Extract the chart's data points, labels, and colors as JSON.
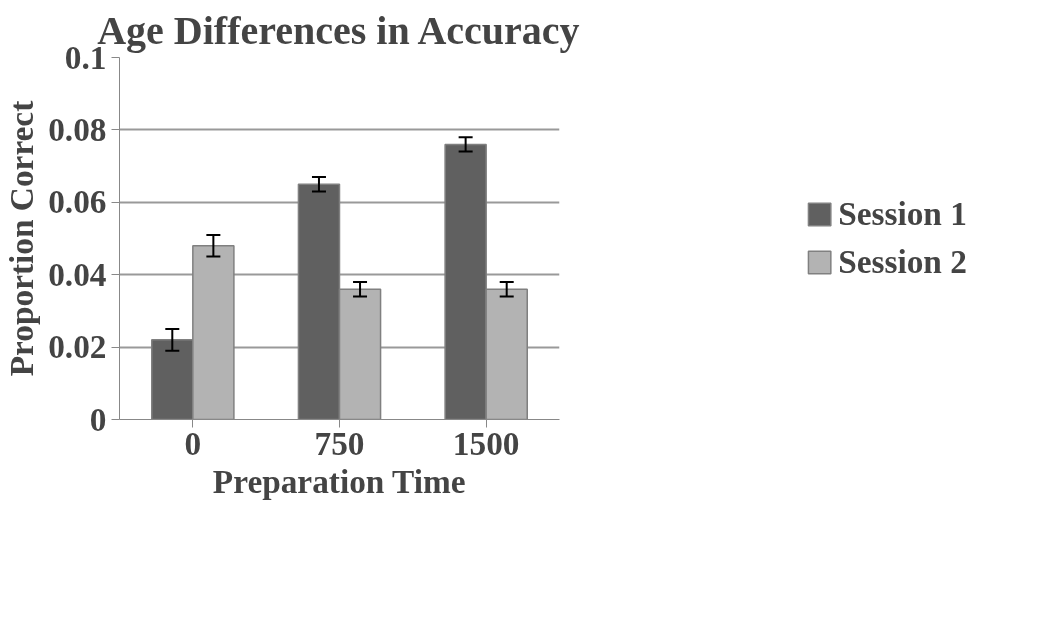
{
  "chart_data": {
    "type": "bar",
    "title": "Age Differences in Accuracy",
    "xlabel": "Preparation Time",
    "ylabel": "Proportion Correct",
    "categories": [
      "0",
      "750",
      "1500"
    ],
    "series": [
      {
        "name": "Session 1",
        "color": "#606060",
        "values": [
          0.022,
          0.065,
          0.076
        ],
        "errors": [
          0.003,
          0.002,
          0.002
        ]
      },
      {
        "name": "Session 2",
        "color": "#b3b3b3",
        "values": [
          0.048,
          0.036,
          0.036
        ],
        "errors": [
          0.003,
          0.002,
          0.002
        ]
      }
    ],
    "ylim": [
      0,
      0.1
    ],
    "yticks": [
      0,
      0.02,
      0.04,
      0.06,
      0.08,
      0.1
    ],
    "grid": "y",
    "legend": "right"
  }
}
